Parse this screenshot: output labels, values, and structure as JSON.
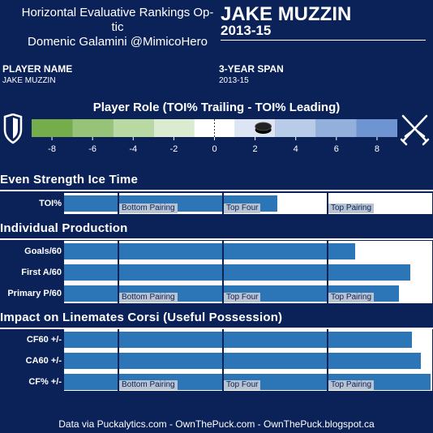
{
  "header": {
    "title_line1": "Horizontal Evaluative Rankings Op-",
    "title_line2": "tic",
    "title_line3": "Domenic Galamini @MimicoHero",
    "player_big": "JAKE MUZZIN",
    "season_big": "2013-15"
  },
  "info": {
    "player_label": "PLAYER NAME",
    "player_value": "JAKE MUZZIN",
    "span_label": "3-YEAR SPAN",
    "span_value": "2013-15"
  },
  "role": {
    "title": "Player Role (TOI% Trailing - TOI% Leading)",
    "value": 2.4,
    "range": [
      -9,
      9
    ],
    "ticks": [
      -8,
      -6,
      -4,
      -2,
      0,
      2,
      4,
      6,
      8
    ],
    "tick_labels": [
      "-8",
      "-6",
      "-4",
      "-2",
      "0",
      "2",
      "4",
      "6",
      "8"
    ],
    "colors": [
      "#74ad4a",
      "#97c378",
      "#b9d9a2",
      "#dbebd0",
      "#ffffff",
      "#dde5f4",
      "#b8cbe8",
      "#93b0dc",
      "#6e95d1"
    ],
    "left_icon": "shield-icon",
    "right_icon": "crossed-swords-icon"
  },
  "tiers": [
    "Bottom Pairing",
    "Top Four",
    "Top Pairing"
  ],
  "sections": [
    {
      "title": "Even Strength Ice Time",
      "rows": [
        {
          "label": "TOI%",
          "value": 0.58
        }
      ]
    },
    {
      "title": "Individual Production",
      "rows": [
        {
          "label": "Goals/60",
          "value": 0.79
        },
        {
          "label": "First A/60",
          "value": 0.94
        },
        {
          "label": "Primary P/60",
          "value": 0.91
        }
      ]
    },
    {
      "title": "Impact on Linemates Corsi (Useful Possession)",
      "rows": [
        {
          "label": "CF60 +/-",
          "value": 0.945
        },
        {
          "label": "CA60 +/-",
          "value": 0.97
        },
        {
          "label": "CF% +/-",
          "value": 0.995
        }
      ]
    }
  ],
  "footer": "Data via Puckalytics.com - OwnThePuck.com - OwnThePuck.blogspot.ca",
  "colors": {
    "background": "#0b2259",
    "bar": "#2c75b6",
    "panel": "#ffffff",
    "text": "#ffffff"
  },
  "chart_data": {
    "type": "bar",
    "title": "Player Role (TOI% Trailing - TOI% Leading)",
    "role_value": 2.4,
    "role_axis": {
      "range": [
        -9,
        9
      ],
      "ticks": [
        -8,
        -6,
        -4,
        -2,
        0,
        2,
        4,
        6,
        8
      ]
    },
    "categories": [
      "TOI%",
      "Goals/60",
      "First A/60",
      "Primary P/60",
      "CF60 +/-",
      "CA60 +/-",
      "CF% +/-"
    ],
    "values": [
      0.58,
      0.79,
      0.94,
      0.91,
      0.945,
      0.97,
      0.995
    ],
    "value_unit": "fraction of panel width (rank scale)",
    "tiers": [
      "Bottom Pairing",
      "Top Four",
      "Top Pairing"
    ],
    "grid": false
  }
}
